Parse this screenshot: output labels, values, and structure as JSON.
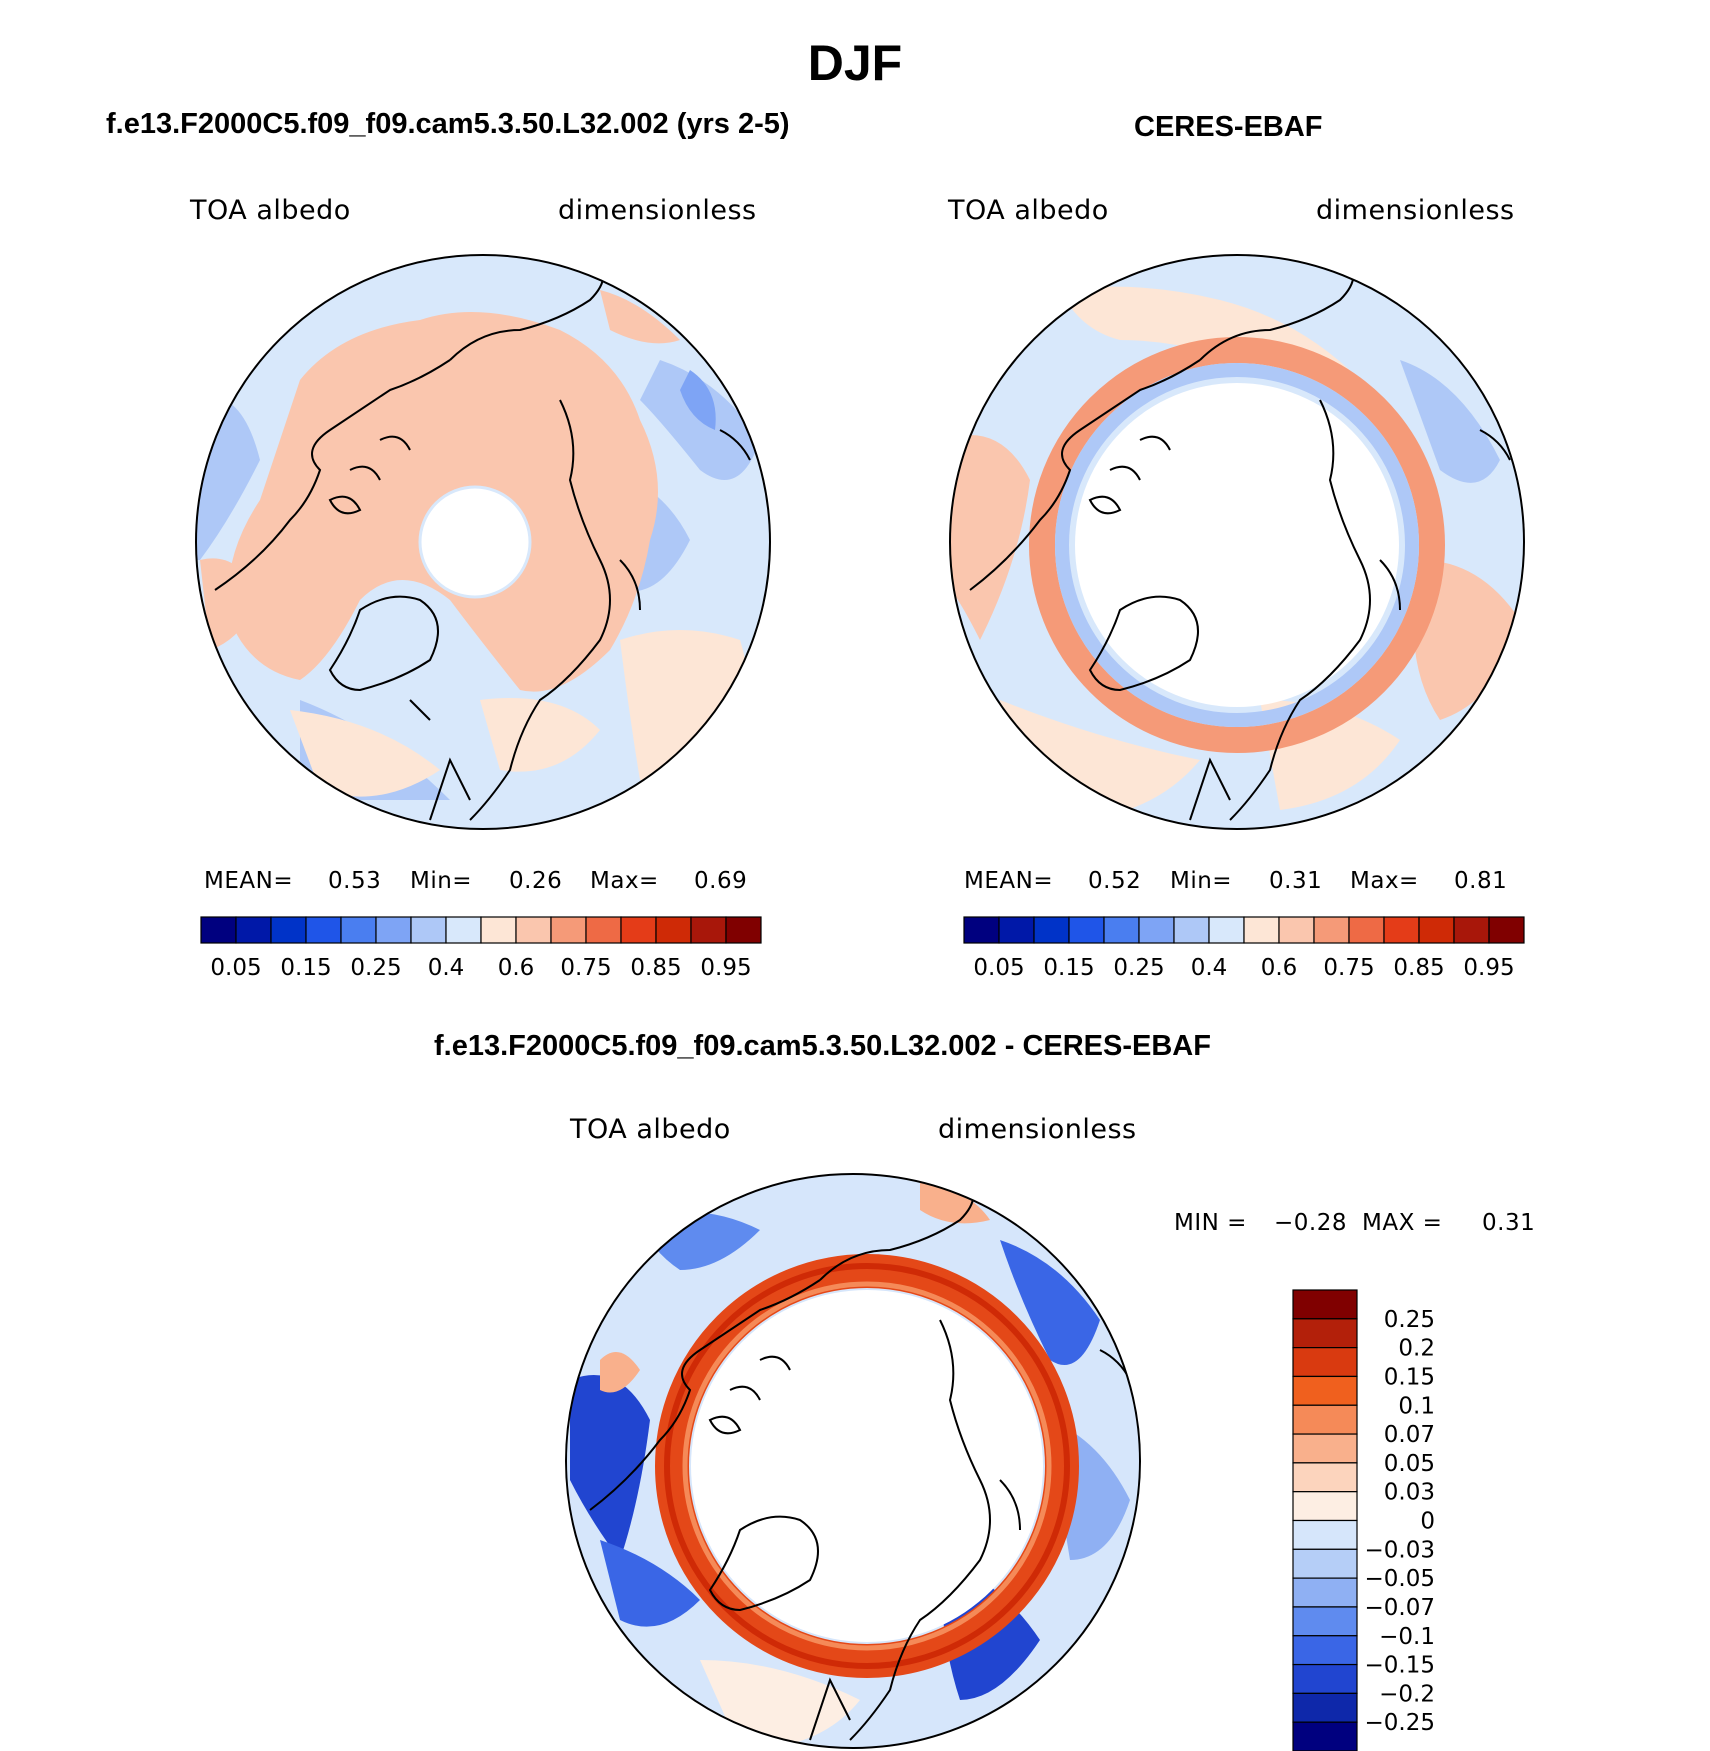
{
  "figure": {
    "title": "DJF"
  },
  "panels": [
    {
      "title": "f.e13.F2000C5.f09_f09.cam5.3.50.L32.002 (yrs 2-5)",
      "variable": "TOA albedo",
      "units": "dimensionless",
      "stats": {
        "mean_label": "MEAN=",
        "mean": "0.53",
        "min_label": "Min=",
        "min": "0.26",
        "max_label": "Max=",
        "max": "0.69"
      }
    },
    {
      "title": "CERES-EBAF",
      "variable": "TOA albedo",
      "units": "dimensionless",
      "stats": {
        "mean_label": "MEAN=",
        "mean": "0.52",
        "min_label": "Min=",
        "min": "0.31",
        "max_label": "Max=",
        "max": "0.81"
      }
    },
    {
      "title": "f.e13.F2000C5.f09_f09.cam5.3.50.L32.002 - CERES-EBAF",
      "variable": "TOA albedo",
      "units": "dimensionless",
      "stats": {
        "min_label": "MIN =",
        "min": "−0.28",
        "max_label": "MAX =",
        "max": "0.31"
      }
    }
  ],
  "colorbars": {
    "albedo": {
      "colors": [
        "#00007f",
        "#0018a8",
        "#0033c8",
        "#1f55e8",
        "#4a7ef0",
        "#7ea4f5",
        "#aec8f7",
        "#d8e8fb",
        "#fde6d6",
        "#fac6ae",
        "#f59a78",
        "#ee6a45",
        "#e43c18",
        "#cf2a06",
        "#a8170a",
        "#800000"
      ],
      "tick_labels": [
        "0.05",
        "0.15",
        "0.25",
        "0.4",
        "0.6",
        "0.75",
        "0.85",
        "0.95"
      ]
    },
    "difference": {
      "colors": [
        "#800000",
        "#b3200a",
        "#d93a10",
        "#f0601e",
        "#f58a58",
        "#f9b08c",
        "#fcd4bd",
        "#fdeee3",
        "#d6e6fb",
        "#b5cef7",
        "#8fb0f3",
        "#5f8bef",
        "#3a66e6",
        "#2145d0",
        "#0e28aa",
        "#00007f"
      ],
      "tick_labels": [
        "0.25",
        "0.2",
        "0.15",
        "0.1",
        "0.07",
        "0.05",
        "0.03",
        "0",
        "−0.03",
        "−0.05",
        "−0.07",
        "−0.1",
        "−0.15",
        "−0.2",
        "−0.25"
      ]
    }
  },
  "map_colors": {
    "albedo_light_blue": "#d8e8fb",
    "albedo_mid_blue": "#aec8f7",
    "albedo_dark_blue": "#7ea4f5",
    "albedo_light_peach": "#fde6d6",
    "albedo_peach": "#fac6ae",
    "albedo_orange": "#f59a78",
    "diff_ring": "#e44818",
    "diff_ring_dark": "#cf2a06",
    "missing": "#ffffff"
  }
}
